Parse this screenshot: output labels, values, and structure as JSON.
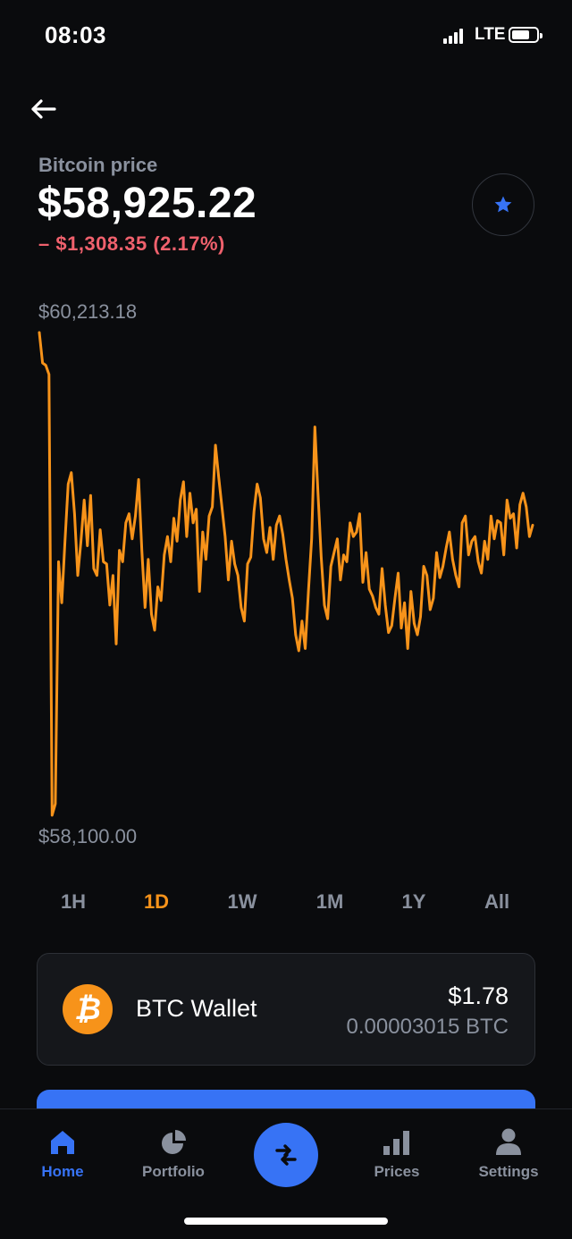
{
  "status_bar": {
    "time": "08:03",
    "network": "LTE"
  },
  "header": {
    "title": "Bitcoin price",
    "price": "$58,925.22",
    "change": "– $1,308.35 (2.17%)"
  },
  "chart_data": {
    "type": "line",
    "series": [
      {
        "values": [
          60213,
          60080,
          60070,
          60030,
          58100,
          58150,
          59210,
          59030,
          59300,
          59550,
          59600,
          59420,
          59150,
          59300,
          59480,
          59280,
          59500,
          59180,
          59150,
          59350,
          59210,
          59200,
          59020,
          59150,
          58850,
          59260,
          59210,
          59380,
          59420,
          59310,
          59410,
          59570,
          59260,
          59010,
          59220,
          58980,
          58910,
          59100,
          59040,
          59240,
          59320,
          59210,
          59400,
          59300,
          59480,
          59560,
          59320,
          59510,
          59380,
          59440,
          59080,
          59340,
          59220,
          59410,
          59450,
          59720,
          59580,
          59450,
          59320,
          59130,
          59300,
          59200,
          59150,
          59010,
          58950,
          59200,
          59230,
          59430,
          59550,
          59490,
          59310,
          59250,
          59360,
          59220,
          59370,
          59410,
          59330,
          59220,
          59130,
          59050,
          58890,
          58820,
          58950,
          58830,
          59080,
          59310,
          59800,
          59510,
          59230,
          59020,
          58960,
          59190,
          59250,
          59310,
          59130,
          59240,
          59210,
          59380,
          59320,
          59340,
          59420,
          59120,
          59250,
          59090,
          59060,
          59010,
          58980,
          59180,
          59020,
          58900,
          58930,
          59050,
          59160,
          58920,
          59030,
          58830,
          59080,
          58940,
          58890,
          58970,
          59190,
          59150,
          59000,
          59050,
          59250,
          59140,
          59190,
          59270,
          59340,
          59220,
          59150,
          59100,
          59380,
          59410,
          59240,
          59300,
          59320,
          59210,
          59160,
          59300,
          59220,
          59410,
          59310,
          59390,
          59380,
          59240,
          59480,
          59400,
          59420,
          59270,
          59460,
          59510,
          59450,
          59320,
          59370
        ]
      }
    ],
    "high_label": "$60,213.18",
    "low_label": "$58,100.00",
    "ylim": [
      58100,
      60213.18
    ],
    "color": "#f7931a",
    "grid": false
  },
  "time_ranges": {
    "items": [
      "1H",
      "1D",
      "1W",
      "1M",
      "1Y",
      "All"
    ],
    "active": "1D"
  },
  "wallet": {
    "name": "BTC Wallet",
    "usd": "$1.78",
    "btc": "0.00003015 BTC",
    "coin_symbol": "₿",
    "coin_color": "#f7931a"
  },
  "tabbar": {
    "home": "Home",
    "portfolio": "Portfolio",
    "prices": "Prices",
    "settings": "Settings",
    "active": "Home",
    "accent": "#3773f5"
  }
}
